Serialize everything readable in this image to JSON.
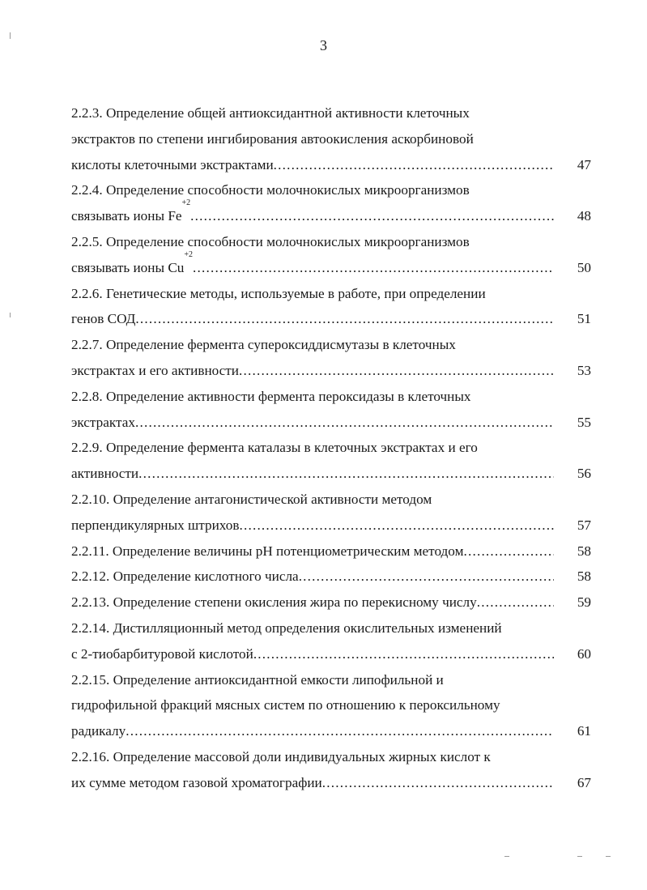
{
  "page_number": "3",
  "entries": [
    {
      "lines": [
        "2.2.3. Определение общей антиоксидантной активности клеточных",
        "экстрактов по степени ингибирования автоокисления аскорбиновой",
        "кислоты клеточными экстрактами"
      ],
      "page": "47"
    },
    {
      "lines": [
        "2.2.4. Определение способности молочнокислых микроорганизмов",
        "связывать ионы Fe"
      ],
      "sup": "+2",
      "page": "48"
    },
    {
      "lines": [
        "2.2.5. Определение способности молочнокислых микроорганизмов",
        "связывать ионы Cu"
      ],
      "sup": "+2",
      "page": "50"
    },
    {
      "lines": [
        "2.2.6. Генетические методы, используемые в работе, при определении",
        "генов СОД"
      ],
      "page": "51"
    },
    {
      "lines": [
        "2.2.7. Определение фермента супероксиддисмутазы в клеточных",
        "экстрактах и его активности"
      ],
      "page": "53"
    },
    {
      "lines": [
        "2.2.8. Определение активности фермента пероксидазы в клеточных",
        "экстрактах "
      ],
      "page": "55"
    },
    {
      "lines": [
        "2.2.9. Определение фермента каталазы в клеточных экстрактах и его",
        "активности"
      ],
      "page": "56"
    },
    {
      "lines": [
        "2.2.10. Определение антагонистической активности методом",
        "перпендикулярных штрихов"
      ],
      "page": "57"
    },
    {
      "lines": [
        "2.2.11. Определение величины pH потенциометрическим методом"
      ],
      "page": "58"
    },
    {
      "lines": [
        "2.2.12. Определение кислотного числа"
      ],
      "page": "58"
    },
    {
      "lines": [
        "2.2.13. Определение степени окисления жира по перекисному числу"
      ],
      "page": "59"
    },
    {
      "lines": [
        "2.2.14. Дистилляционный метод определения окислительных изменений",
        "с 2-тиобарбитуровой кислотой"
      ],
      "page": "60"
    },
    {
      "lines": [
        "2.2.15. Определение антиоксидантной емкости липофильной и",
        "гидрофильной фракций мясных систем по отношению к пероксильному",
        "радикалу"
      ],
      "page": "61"
    },
    {
      "lines": [
        "2.2.16. Определение массовой доли индивидуальных жирных кислот к",
        "их сумме методом газовой хроматографии"
      ],
      "page": "67"
    }
  ]
}
